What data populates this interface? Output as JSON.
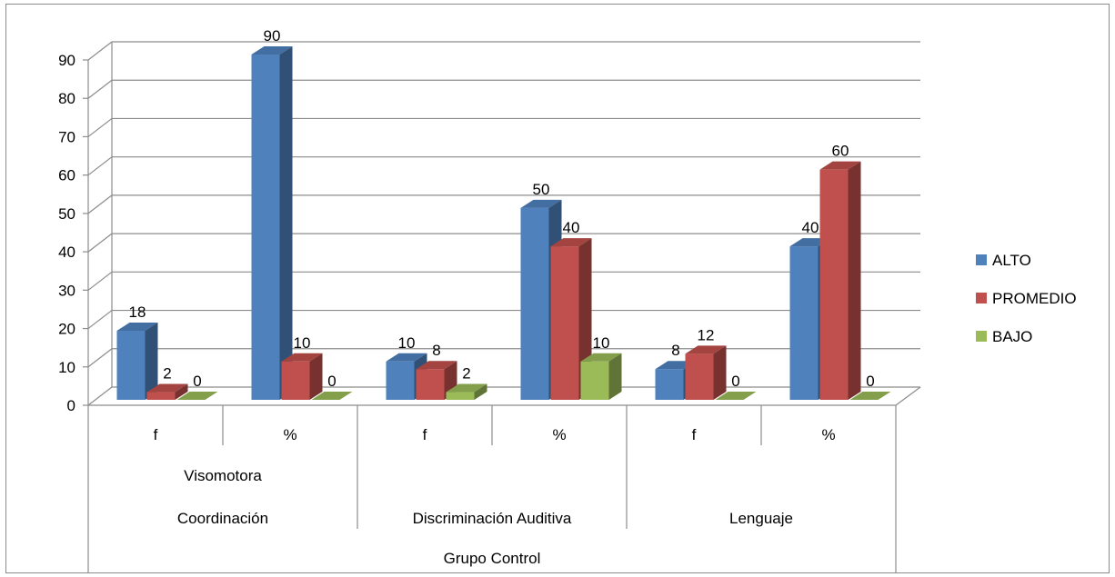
{
  "chart_data": {
    "type": "bar",
    "title": "",
    "ylim": [
      0,
      90
    ],
    "yticks": [
      "0",
      "10",
      "20",
      "30",
      "40",
      "50",
      "60",
      "70",
      "80",
      "90"
    ],
    "categories": [
      "f",
      "%",
      "f",
      "%",
      "f",
      "%"
    ],
    "groups": [
      {
        "lines": [
          "Visomotora",
          "Coordinación"
        ]
      },
      {
        "lines": [
          "Discriminación Auditiva"
        ]
      },
      {
        "lines": [
          "Lenguaje"
        ]
      }
    ],
    "outer_label": "Grupo Control",
    "series": [
      {
        "name": "ALTO",
        "color": "#4f81bd",
        "values": [
          18,
          90,
          10,
          50,
          8,
          40
        ]
      },
      {
        "name": "PROMEDIO",
        "color": "#c0504d",
        "values": [
          2,
          10,
          8,
          40,
          12,
          60
        ]
      },
      {
        "name": "BAJO",
        "color": "#9bbb59",
        "values": [
          0,
          0,
          2,
          10,
          0,
          0
        ]
      }
    ],
    "grid": true,
    "legend": "right"
  }
}
